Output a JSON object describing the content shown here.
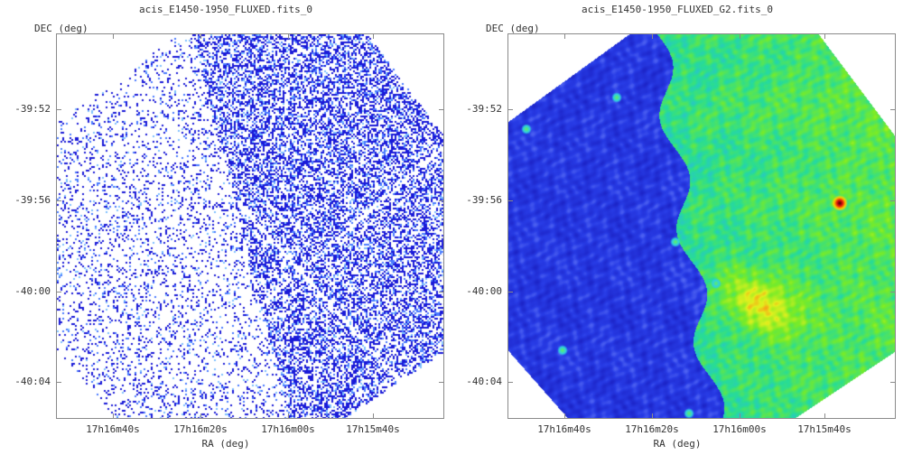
{
  "panels": [
    {
      "title": "acis_E1450-1950_FLUXED.fits_0",
      "ylabel": "DEC (deg)",
      "xlabel": "RA (deg)",
      "render": "raw-counts",
      "yticks": [
        "-39:52",
        "-39:56",
        "-40:00",
        "-40:04"
      ],
      "xticks": [
        "17h16m40s",
        "17h16m20s",
        "17h16m00s",
        "17h15m40s"
      ]
    },
    {
      "title": "acis_E1450-1950_FLUXED_G2.fits_0",
      "ylabel": "DEC (deg)",
      "xlabel": "RA (deg)",
      "render": "smoothed",
      "yticks": [
        "-39:52",
        "-39:56",
        "-40:00",
        "-40:04"
      ],
      "xticks": [
        "17h16m40s",
        "17h16m20s",
        "17h16m00s",
        "17h15m40s"
      ]
    }
  ],
  "colormap": [
    "#ffffff",
    "#1a1ad8",
    "#3060ff",
    "#7fb0ff",
    "#36c8f0",
    "#2fe0a0",
    "#8ff020",
    "#e8f010",
    "#ff8000",
    "#e01010"
  ]
}
